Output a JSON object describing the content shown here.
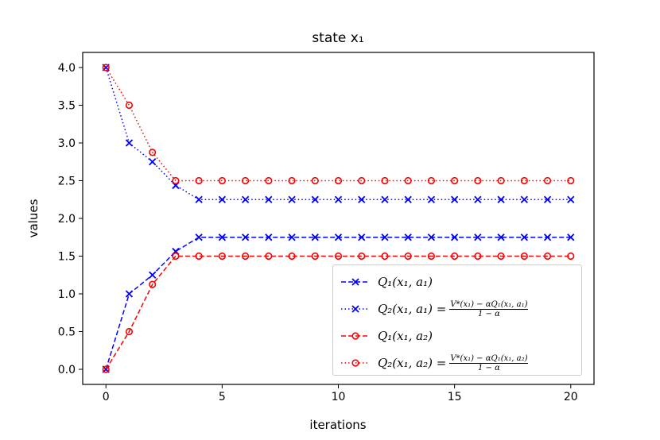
{
  "chart_data": {
    "type": "line",
    "title": "state x₁",
    "xlabel": "iterations",
    "ylabel": "values",
    "xlim": [
      -1,
      21
    ],
    "ylim": [
      -0.2,
      4.2
    ],
    "xticks": [
      0,
      5,
      10,
      15,
      20
    ],
    "yticks": [
      0.0,
      0.5,
      1.0,
      1.5,
      2.0,
      2.5,
      3.0,
      3.5,
      4.0
    ],
    "ytick_labels": [
      "0.0",
      "0.5",
      "1.0",
      "1.5",
      "2.0",
      "2.5",
      "3.0",
      "3.5",
      "4.0"
    ],
    "x": [
      0,
      1,
      2,
      3,
      4,
      5,
      6,
      7,
      8,
      9,
      10,
      11,
      12,
      13,
      14,
      15,
      16,
      17,
      18,
      19,
      20
    ],
    "legend_position": "lower-right",
    "series": [
      {
        "name": "Q₁(x₁, a₁)",
        "frac_num": "",
        "frac_den": "",
        "color": "#0000ff",
        "dash": "dashed",
        "marker": "x",
        "values": [
          0,
          1.0,
          1.25,
          1.5625,
          1.75,
          1.75,
          1.75,
          1.75,
          1.75,
          1.75,
          1.75,
          1.75,
          1.75,
          1.75,
          1.75,
          1.75,
          1.75,
          1.75,
          1.75,
          1.75,
          1.75
        ]
      },
      {
        "name": "Q₂(x₁, a₁) =",
        "frac_num": "V*(x₁) − αQ₁(x₁, a₁)",
        "frac_den": "1 − α",
        "color": "#0000ff",
        "dash": "dotted",
        "marker": "x",
        "values": [
          4,
          3.0,
          2.75,
          2.4375,
          2.25,
          2.25,
          2.25,
          2.25,
          2.25,
          2.25,
          2.25,
          2.25,
          2.25,
          2.25,
          2.25,
          2.25,
          2.25,
          2.25,
          2.25,
          2.25,
          2.25
        ]
      },
      {
        "name": "Q₁(x₁, a₂)",
        "frac_num": "",
        "frac_den": "",
        "color": "#ff0000",
        "dash": "dashed",
        "marker": "o",
        "values": [
          0,
          0.5,
          1.125,
          1.5,
          1.5,
          1.5,
          1.5,
          1.5,
          1.5,
          1.5,
          1.5,
          1.5,
          1.5,
          1.5,
          1.5,
          1.5,
          1.5,
          1.5,
          1.5,
          1.5,
          1.5
        ]
      },
      {
        "name": "Q₂(x₁, a₂) =",
        "frac_num": "V*(x₁) − αQ₁(x₁, a₂)",
        "frac_den": "1 − α",
        "color": "#ff0000",
        "dash": "dotted",
        "marker": "o",
        "values": [
          4,
          3.5,
          2.875,
          2.5,
          2.5,
          2.5,
          2.5,
          2.5,
          2.5,
          2.5,
          2.5,
          2.5,
          2.5,
          2.5,
          2.5,
          2.5,
          2.5,
          2.5,
          2.5,
          2.5,
          2.5
        ]
      }
    ]
  }
}
